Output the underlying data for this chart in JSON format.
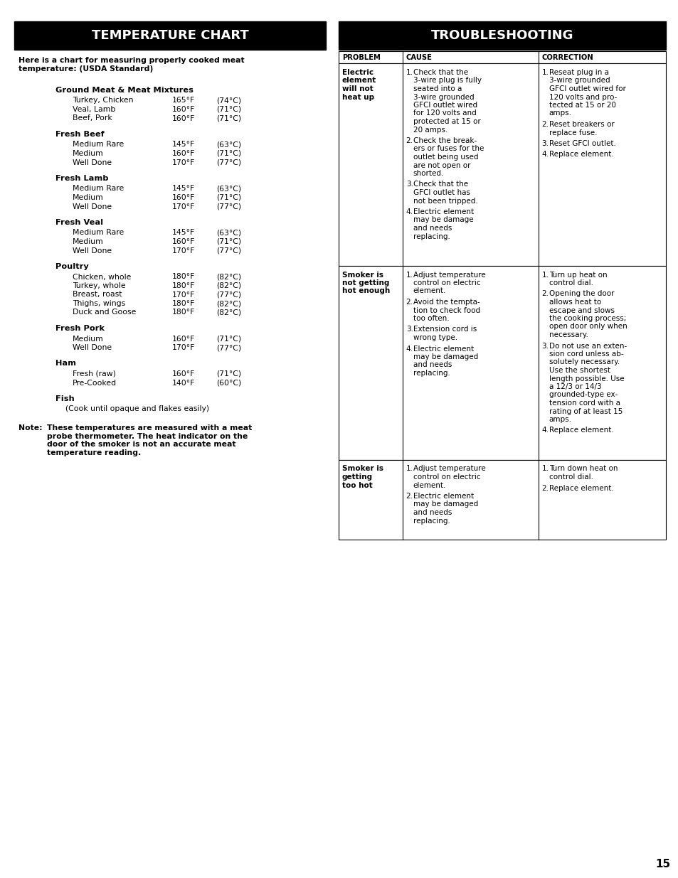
{
  "page_bg": "#ffffff",
  "left_header_bg": "#000000",
  "left_header_text": "TEMPERATURE CHART",
  "left_header_color": "#ffffff",
  "right_header_bg": "#000000",
  "right_header_text": "TROUBLESHOOTING",
  "right_header_color": "#ffffff",
  "intro_text": "Here is a chart for measuring properly cooked meat\ntemperature: (USDA Standard)",
  "temp_sections": [
    {
      "category": "Ground Meat & Meat Mixtures",
      "items": [
        [
          "Turkey, Chicken",
          "165°F",
          "(74°C)"
        ],
        [
          "Veal, Lamb",
          "160°F",
          "(71°C)"
        ],
        [
          "Beef, Pork",
          "160°F",
          "(71°C)"
        ]
      ]
    },
    {
      "category": "Fresh Beef",
      "items": [
        [
          "Medium Rare",
          "145°F",
          "(63°C)"
        ],
        [
          "Medium",
          "160°F",
          "(71°C)"
        ],
        [
          "Well Done",
          "170°F",
          "(77°C)"
        ]
      ]
    },
    {
      "category": "Fresh Lamb",
      "items": [
        [
          "Medium Rare",
          "145°F",
          "(63°C)"
        ],
        [
          "Medium",
          "160°F",
          "(71°C)"
        ],
        [
          "Well Done",
          "170°F",
          "(77°C)"
        ]
      ]
    },
    {
      "category": "Fresh Veal",
      "items": [
        [
          "Medium Rare",
          "145°F",
          "(63°C)"
        ],
        [
          "Medium",
          "160°F",
          "(71°C)"
        ],
        [
          "Well Done",
          "170°F",
          "(77°C)"
        ]
      ]
    },
    {
      "category": "Poultry",
      "items": [
        [
          "Chicken, whole",
          "180°F",
          "(82°C)"
        ],
        [
          "Turkey, whole",
          "180°F",
          "(82°C)"
        ],
        [
          "Breast, roast",
          "170°F",
          "(77°C)"
        ],
        [
          "Thighs, wings",
          "180°F",
          "(82°C)"
        ],
        [
          "Duck and Goose",
          "180°F",
          "(82°C)"
        ]
      ]
    },
    {
      "category": "Fresh Pork",
      "items": [
        [
          "Medium",
          "160°F",
          "(71°C)"
        ],
        [
          "Well Done",
          "170°F",
          "(77°C)"
        ]
      ]
    },
    {
      "category": "Ham",
      "items": [
        [
          "Fresh (raw)",
          "160°F",
          "(71°C)"
        ],
        [
          "Pre-Cooked",
          "140°F",
          "(60°C)"
        ]
      ]
    },
    {
      "category": "Fish",
      "items": [
        [
          "(Cook until opaque and flakes easily)",
          "",
          ""
        ]
      ]
    }
  ],
  "note_label": "Note:",
  "note_text": "These temperatures are measured with a meat\nprobe thermometer. The heat indicator on the\ndoor of the smoker is not an accurate meat\ntemperature reading.",
  "troubleshooting_headers": [
    "PROBLEM",
    "CAUSE",
    "CORRECTION"
  ],
  "troubleshooting_rows": [
    {
      "problem": "Electric\nelement\nwill not\nheat up",
      "cause_items": [
        [
          "1.",
          "Check that the\n3-wire plug is fully\nseated into a\n3-wire grounded\nGFCI outlet wired\nfor 120 volts and\nprotected at 15 or\n20 amps."
        ],
        [
          "2.",
          "Check the break-\ners or fuses for the\noutlet being used\nare not open or\nshorted."
        ],
        [
          "3.",
          "Check that the\nGFCI outlet has\nnot been tripped."
        ],
        [
          "4.",
          "Electric element\nmay be damage\nand needs\nreplacing."
        ]
      ],
      "correction_items": [
        [
          "1.",
          "Reseat plug in a\n3-wire grounded\nGFCI outlet wired for\n120 volts and pro-\ntected at 15 or 20\namps."
        ],
        [
          "2.",
          "Reset breakers or\nreplace fuse."
        ],
        [
          "3.",
          "Reset GFCI outlet."
        ],
        [
          "4.",
          "Replace element."
        ]
      ]
    },
    {
      "problem": "Smoker is\nnot getting\nhot enough",
      "cause_items": [
        [
          "1.",
          "Adjust temperature\ncontrol on electric\nelement."
        ],
        [
          "2.",
          "Avoid the tempta-\ntion to check food\ntoo often."
        ],
        [
          "3.",
          "Extension cord is\nwrong type."
        ],
        [
          "4.",
          "Electric element\nmay be damaged\nand needs\nreplacing."
        ]
      ],
      "correction_items": [
        [
          "1.",
          "Turn up heat on\ncontrol dial."
        ],
        [
          "2.",
          "Opening the door\nallows heat to\nescape and slows\nthe cooking process;\nopen door only when\nnecessary."
        ],
        [
          "3.",
          "Do not use an exten-\nsion cord unless ab-\nsolutely necessary.\nUse the shortest\nlength possible. Use\na 12/3 or 14/3\ngrounded-type ex-\ntension cord with a\nrating of at least 15\namps."
        ],
        [
          "4.",
          "Replace element."
        ]
      ]
    },
    {
      "problem": "Smoker is\ngetting\ntoo hot",
      "cause_items": [
        [
          "1.",
          "Adjust temperature\ncontrol on electric\nelement."
        ],
        [
          "2.",
          "Electric element\nmay be damaged\nand needs\nreplacing."
        ]
      ],
      "correction_items": [
        [
          "1.",
          "Turn down heat on\ncontrol dial."
        ],
        [
          "2.",
          "Replace element."
        ]
      ]
    }
  ],
  "page_number": "15"
}
